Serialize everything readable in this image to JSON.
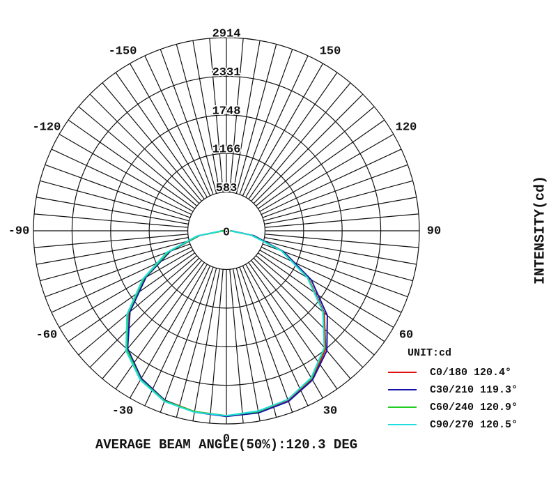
{
  "chart_data": {
    "type": "polar",
    "title": "AVERAGE BEAM ANGLE(50%):120.3 DEG",
    "y_label": "INTENSITY(cd)",
    "legend_title": "UNIT:cd",
    "x": [
      -90,
      -80,
      -70,
      -60,
      -50,
      -40,
      -30,
      -20,
      -10,
      0,
      10,
      20,
      30,
      40,
      50,
      60,
      70,
      80,
      90
    ],
    "series": [
      {
        "name": "C0/180 120.4°",
        "color": "#e01010",
        "values": [
          60,
          430,
          920,
          1420,
          1920,
          2330,
          2580,
          2720,
          2770,
          2790,
          2770,
          2720,
          2590,
          2330,
          1930,
          1430,
          900,
          400,
          60
        ]
      },
      {
        "name": "C30/210 119.3°",
        "color": "#1414a8",
        "values": [
          50,
          410,
          900,
          1400,
          1900,
          2320,
          2570,
          2720,
          2780,
          2800,
          2790,
          2740,
          2600,
          2360,
          1990,
          1480,
          920,
          420,
          70
        ]
      },
      {
        "name": "C60/240 120.9°",
        "color": "#22cc22",
        "values": [
          40,
          420,
          930,
          1440,
          1940,
          2340,
          2590,
          2730,
          2770,
          2790,
          2770,
          2710,
          2570,
          2310,
          1910,
          1420,
          890,
          390,
          50
        ]
      },
      {
        "name": "C90/270 120.5°",
        "color": "#22dddd",
        "values": [
          70,
          450,
          960,
          1460,
          1960,
          2360,
          2600,
          2740,
          2780,
          2790,
          2760,
          2710,
          2560,
          2300,
          1900,
          1410,
          880,
          380,
          60
        ]
      }
    ],
    "rlim": [
      0,
      2914
    ],
    "rticks": [
      0,
      583,
      1166,
      1748,
      2331,
      2914
    ],
    "angle_ticks": [
      -150,
      -120,
      -90,
      -60,
      -30,
      0,
      30,
      60,
      90,
      120,
      150
    ],
    "legend_position": "lower right"
  }
}
